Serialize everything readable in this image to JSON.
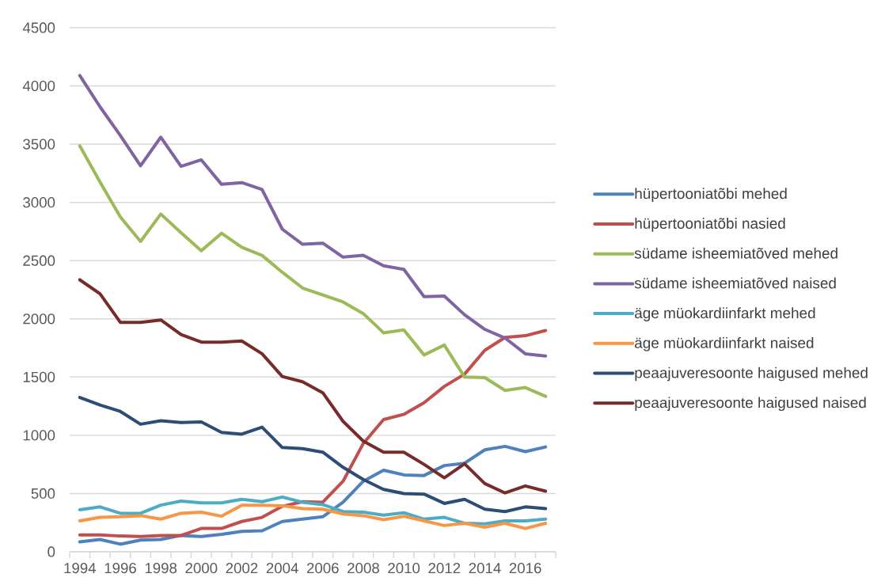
{
  "chart_data": {
    "type": "line",
    "categories": [
      "1994",
      null,
      "1996",
      null,
      "1998",
      null,
      "2000",
      null,
      "2002",
      null,
      "2004",
      null,
      "2006",
      null,
      "2008",
      null,
      "2010",
      null,
      "2012",
      null,
      "2014",
      null,
      "2016",
      null
    ],
    "ylim": [
      0,
      4500
    ],
    "yticks": [
      0,
      500,
      1000,
      1500,
      2000,
      2500,
      3000,
      3500,
      4000,
      4500
    ],
    "grid": "y",
    "legend": "right",
    "marker": "none",
    "line_style": "solid",
    "series": [
      {
        "name": "hüpertooniatõbi mehed",
        "color": "#4f81bd",
        "values": [
          85,
          105,
          65,
          100,
          105,
          140,
          130,
          150,
          175,
          180,
          260,
          280,
          300,
          425,
          605,
          700,
          660,
          655,
          740,
          760,
          875,
          905,
          860,
          900
        ]
      },
      {
        "name": "hüpertooniatõbi nasied",
        "color": "#c0504d",
        "values": [
          145,
          145,
          135,
          130,
          140,
          140,
          200,
          200,
          260,
          295,
          390,
          430,
          425,
          605,
          930,
          1135,
          1180,
          1280,
          1420,
          1525,
          1730,
          1840,
          1855,
          1900
        ]
      },
      {
        "name": "südame isheemiatõved mehed",
        "color": "#9bbb59",
        "values": [
          3485,
          3175,
          2875,
          2665,
          2900,
          2740,
          2585,
          2735,
          2615,
          2545,
          2400,
          2265,
          2205,
          2145,
          2045,
          1880,
          1905,
          1690,
          1775,
          1500,
          1495,
          1385,
          1410,
          1335
        ]
      },
      {
        "name": "südame isheemiatõved naised",
        "color": "#8064a2",
        "values": [
          4090,
          3820,
          3575,
          3315,
          3560,
          3310,
          3365,
          3155,
          3170,
          3110,
          2770,
          2640,
          2650,
          2530,
          2545,
          2455,
          2425,
          2190,
          2195,
          2035,
          1910,
          1835,
          1700,
          1680
        ]
      },
      {
        "name": "äge müokardiinfarkt mehed",
        "color": "#4bacc6",
        "values": [
          360,
          385,
          330,
          330,
          400,
          435,
          420,
          420,
          450,
          430,
          470,
          425,
          405,
          345,
          340,
          315,
          335,
          280,
          295,
          245,
          240,
          265,
          265,
          280
        ]
      },
      {
        "name": "äge müokardiinfarkt naised",
        "color": "#f79646",
        "values": [
          265,
          295,
          300,
          310,
          280,
          330,
          340,
          305,
          400,
          400,
          395,
          370,
          365,
          325,
          310,
          275,
          305,
          265,
          225,
          245,
          210,
          245,
          200,
          245
        ]
      },
      {
        "name": "peaajuveresoonte haigused mehed",
        "color": "#2c4d75",
        "values": [
          1325,
          1260,
          1205,
          1095,
          1125,
          1110,
          1115,
          1025,
          1010,
          1070,
          895,
          885,
          855,
          725,
          620,
          535,
          500,
          495,
          415,
          450,
          365,
          345,
          385,
          370
        ]
      },
      {
        "name": "peaajuveresoonte haigused naised",
        "color": "#772c2a",
        "values": [
          2335,
          2215,
          1970,
          1970,
          1990,
          1865,
          1800,
          1800,
          1810,
          1700,
          1505,
          1460,
          1365,
          1120,
          950,
          855,
          855,
          750,
          635,
          755,
          585,
          505,
          565,
          520
        ]
      }
    ]
  }
}
